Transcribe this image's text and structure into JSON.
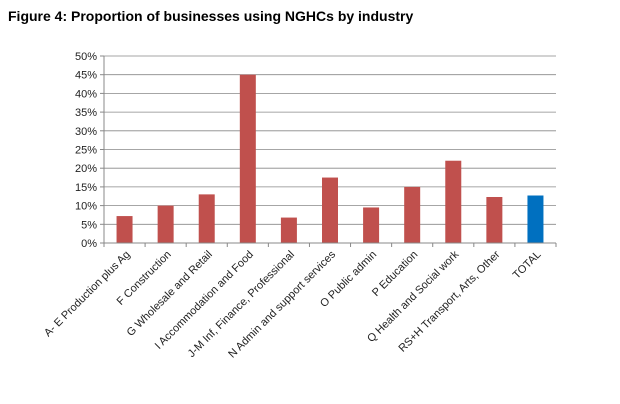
{
  "title": "Figure 4: Proportion of businesses using NGHCs by industry",
  "chart_data": {
    "type": "bar",
    "title": "Figure 4: Proportion of businesses using NGHCs by industry",
    "xlabel": "",
    "ylabel": "",
    "ylim": [
      0,
      50
    ],
    "yticks": [
      "0%",
      "5%",
      "10%",
      "15%",
      "20%",
      "25%",
      "30%",
      "35%",
      "40%",
      "45%",
      "50%"
    ],
    "grid": true,
    "categories": [
      "A- E Production plus Ag",
      "F Construction",
      "G Wholesale and Retail",
      "I Accommodation and Food",
      "J-M Inf, Finance, Professional",
      "N Admin and support services",
      "O Public admin",
      "P Education",
      "Q Health and Social work",
      "RS+H Transport, Arts, Other",
      "TOTAL"
    ],
    "values": [
      7.2,
      10.0,
      13.0,
      45.0,
      6.8,
      17.5,
      9.5,
      15.0,
      22.0,
      12.3,
      12.7
    ],
    "colors": [
      "#c0504d",
      "#c0504d",
      "#c0504d",
      "#c0504d",
      "#c0504d",
      "#c0504d",
      "#c0504d",
      "#c0504d",
      "#c0504d",
      "#c0504d",
      "#0070c0"
    ]
  }
}
